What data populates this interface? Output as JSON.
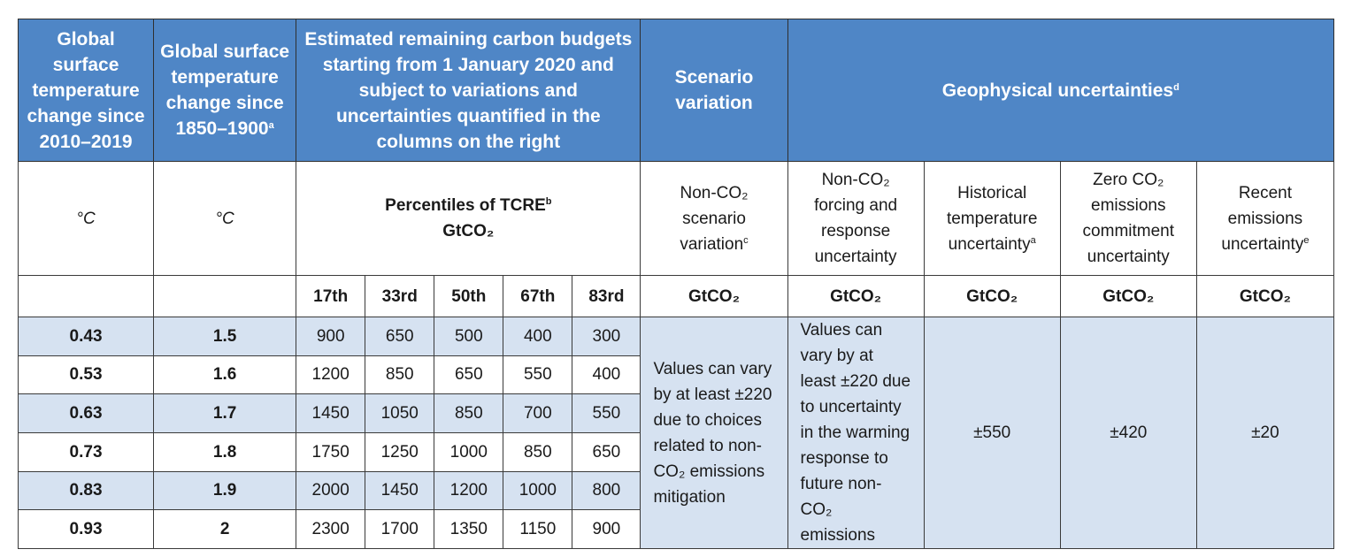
{
  "header": {
    "col1": "Global surface temperature change since 2010–2019",
    "col2": "Global surface temperature change since 1850–1900",
    "col2_sup": "a",
    "budget": "Estimated remaining carbon budgets starting from 1 January 2020 and subject to variations and uncertainties quantified in the columns on the right",
    "scenario": "Scenario variation",
    "geophysical": "Geophysical uncertainties",
    "geophysical_sup": "d"
  },
  "subheader": {
    "unit1": "°C",
    "unit2": "°C",
    "tcre_line1": "Percentiles of TCRE",
    "tcre_sup": "b",
    "tcre_line2": "GtCO₂",
    "nonco2_scenario": "Non-CO₂ scenario variation",
    "nonco2_scenario_sup": "c",
    "nonco2_forcing": "Non-CO₂ forcing and response uncertainty",
    "historical": "Historical temperature uncertainty",
    "historical_sup": "a",
    "zero_co2": "Zero CO₂ emissions commitment uncertainty",
    "recent": "Recent emissions uncertainty",
    "recent_sup": "e"
  },
  "units_row": {
    "percentiles": [
      "17th",
      "33rd",
      "50th",
      "67th",
      "83rd"
    ],
    "gt": "GtCO₂"
  },
  "rows": [
    {
      "since2010": "0.43",
      "since1850": "1.5",
      "values": [
        "900",
        "650",
        "500",
        "400",
        "300"
      ]
    },
    {
      "since2010": "0.53",
      "since1850": "1.6",
      "values": [
        "1200",
        "850",
        "650",
        "550",
        "400"
      ]
    },
    {
      "since2010": "0.63",
      "since1850": "1.7",
      "values": [
        "1450",
        "1050",
        "850",
        "700",
        "550"
      ]
    },
    {
      "since2010": "0.73",
      "since1850": "1.8",
      "values": [
        "1750",
        "1250",
        "1000",
        "850",
        "650"
      ]
    },
    {
      "since2010": "0.83",
      "since1850": "1.9",
      "values": [
        "2000",
        "1450",
        "1200",
        "1000",
        "800"
      ]
    },
    {
      "since2010": "0.93",
      "since1850": "2",
      "values": [
        "2300",
        "1700",
        "1350",
        "1150",
        "900"
      ]
    }
  ],
  "merged": {
    "scenario_text": "Values can vary by at least ±220 due to choices related to non-CO₂ emissions mitigation",
    "forcing_text": "Values can vary by at least ±220 due to uncertainty in the warming response to future non-CO₂ emissions",
    "historical": "±550",
    "zero": "±420",
    "recent": "±20"
  },
  "colors": {
    "header_bg": "#4f86c6",
    "shade_bg": "#d6e2f1"
  }
}
